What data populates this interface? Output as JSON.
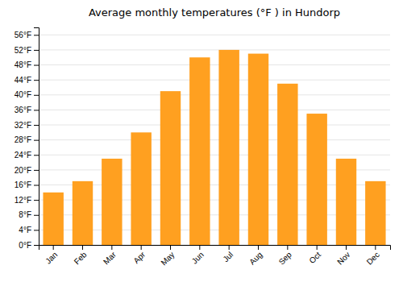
{
  "chart_data": {
    "type": "bar",
    "title": "Average monthly temperatures (°F ) in Hundorp",
    "categories": [
      "Jan",
      "Feb",
      "Mar",
      "Apr",
      "May",
      "Jun",
      "Jul",
      "Aug",
      "Sep",
      "Oct",
      "Nov",
      "Dec"
    ],
    "values": [
      14,
      17,
      23,
      30,
      41,
      50,
      52,
      51,
      43,
      35,
      23,
      17
    ],
    "color": "#FFA020",
    "ylim": [
      0,
      58
    ],
    "yticks": [
      {
        "value": 0,
        "label": "0°F"
      },
      {
        "value": 4,
        "label": "4°F"
      },
      {
        "value": 8,
        "label": "8°F"
      },
      {
        "value": 12,
        "label": "12°F"
      },
      {
        "value": 16,
        "label": "16°F"
      },
      {
        "value": 20,
        "label": "20°F"
      },
      {
        "value": 24,
        "label": "24°F"
      },
      {
        "value": 28,
        "label": "28°F"
      },
      {
        "value": 32,
        "label": "32°F"
      },
      {
        "value": 36,
        "label": "36°F"
      },
      {
        "value": 40,
        "label": "40°F"
      },
      {
        "value": 44,
        "label": "44°F"
      },
      {
        "value": 48,
        "label": "48°F"
      },
      {
        "value": 52,
        "label": "52°F"
      },
      {
        "value": 56,
        "label": "56°F"
      }
    ],
    "grid": true
  }
}
